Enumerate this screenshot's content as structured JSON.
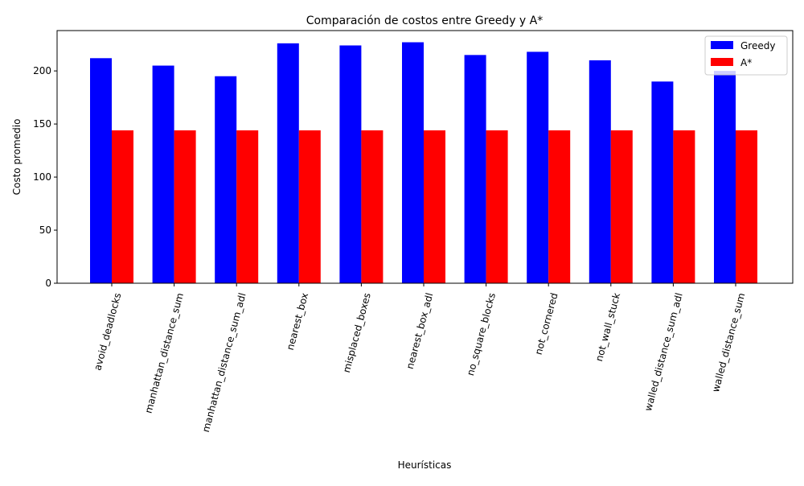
{
  "chart_data": {
    "type": "bar",
    "title": "Comparación de costos entre Greedy y A*",
    "xlabel": "Heurísticas",
    "ylabel": "Costo promedio",
    "ylim": [
      0,
      238
    ],
    "yticks": [
      0,
      50,
      100,
      150,
      200
    ],
    "categories": [
      "avoid_deadlocks",
      "manhattan_distance_sum",
      "manhattan_distance_sum_adl",
      "nearest_box",
      "misplaced_boxes",
      "nearest_box_adl",
      "no_square_blocks",
      "not_cornered",
      "not_wall_stuck",
      "walled_distance_sum_adl",
      "walled_distance_sum"
    ],
    "series": [
      {
        "name": "Greedy",
        "color": "#0000ff",
        "values": [
          212,
          205,
          195,
          226,
          224,
          227,
          215,
          218,
          210,
          190,
          200
        ]
      },
      {
        "name": "A*",
        "color": "#ff0000",
        "values": [
          144,
          144,
          144,
          144,
          144,
          144,
          144,
          144,
          144,
          144,
          144
        ]
      }
    ],
    "legend_position": "top-right",
    "grid": false
  }
}
